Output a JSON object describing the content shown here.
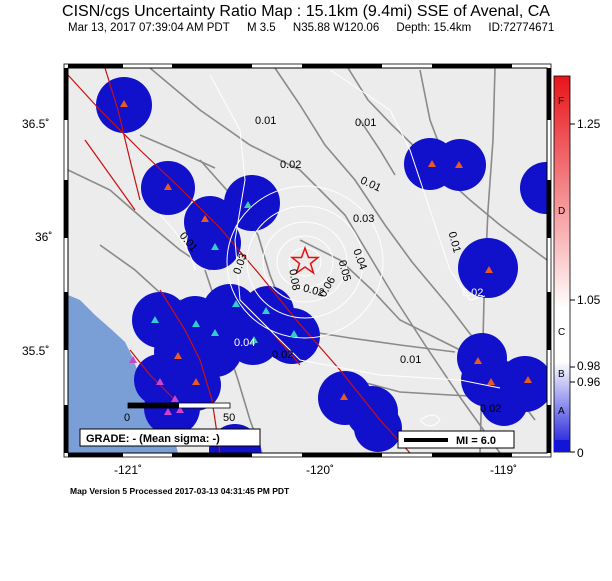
{
  "title": "CISN/cgs Uncertainty Ratio Map : 15.1km (9.4mi) SSE of Avenal, CA",
  "header": {
    "datetime": "Mar 13, 2017 07:39:04 AM PDT",
    "magnitude": "M 3.5",
    "location": "N35.88 W120.06",
    "depth": "Depth: 15.4km",
    "event_id": "ID:72774671"
  },
  "axes": {
    "lat_ticks": [
      "36.5˚",
      "36˚",
      "35.5˚"
    ],
    "lon_ticks": [
      "-121˚",
      "-120˚",
      "-119˚"
    ]
  },
  "contour_labels": [
    "0.01",
    "0.01",
    "0.01",
    "0.01",
    "0.01",
    "0.02",
    "0.02",
    "0.02",
    "0.02",
    "0.03",
    "0.03",
    "0.04",
    "0.04",
    "0.05",
    "0.06",
    "0.08",
    "0.01",
    "0.02"
  ],
  "scale_bar": {
    "start": "0",
    "end": "50"
  },
  "grade_box": "GRADE: - (Mean sigma: -)",
  "mi_legend": "MI = 6.0",
  "colorbar": {
    "letters": [
      "F",
      "D",
      "C",
      "B",
      "A"
    ],
    "values": [
      "1.25",
      "1.05",
      "0.98",
      "0.96",
      "0"
    ],
    "colors": {
      "top": "#e8141a",
      "middle": "#ffffff",
      "bottom": "#1214d8"
    }
  },
  "footer": "Map Version 5 Processed 2017-03-13 04:31:45 PM PDT",
  "colors": {
    "land": "#ececec",
    "ocean": "#7a9fd6",
    "uncertainty": "#1111cc",
    "road": "#8a8a8a",
    "fault": "#c81010",
    "epicenter": "#e81010"
  }
}
